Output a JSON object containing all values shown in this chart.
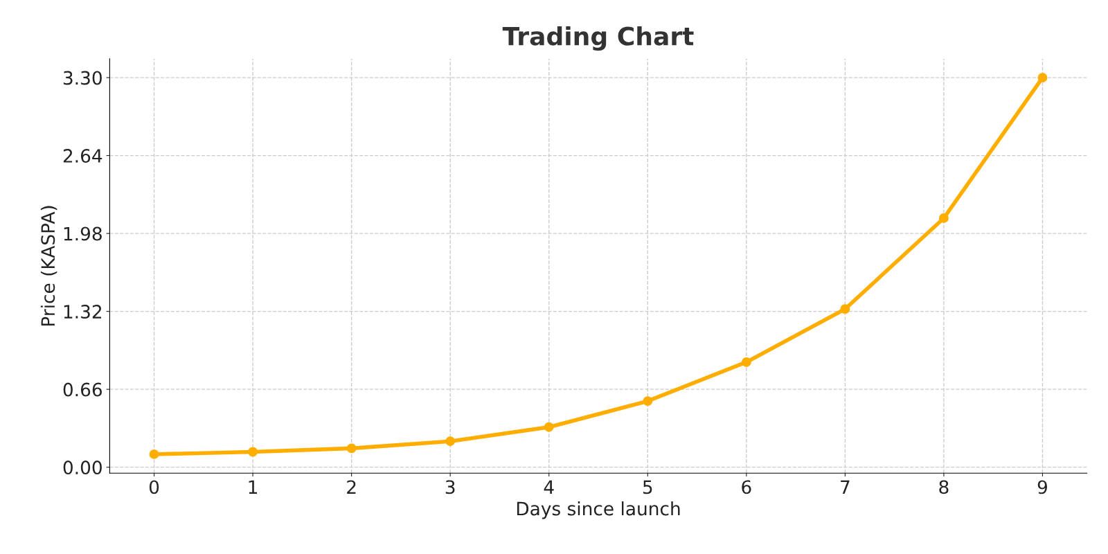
{
  "chart_data": {
    "type": "line",
    "title": "Trading Chart",
    "xlabel": "Days since launch",
    "ylabel": "Price (KASPA)",
    "x": [
      0,
      1,
      2,
      3,
      4,
      5,
      6,
      7,
      8,
      9
    ],
    "series": [
      {
        "color": "#ffae00",
        "values": [
          0.11,
          0.13,
          0.16,
          0.22,
          0.34,
          0.56,
          0.89,
          1.34,
          2.11,
          3.3
        ]
      }
    ],
    "xlim": [
      -0.45,
      9.45
    ],
    "xticks": [
      0,
      1,
      2,
      3,
      4,
      5,
      6,
      7,
      8,
      9
    ],
    "ylim": [
      -0.05,
      3.46
    ],
    "yticks": [
      {
        "value": 0,
        "label": "0.00"
      },
      {
        "value": 0.66,
        "label": "0.66"
      },
      {
        "value": 1.32,
        "label": "1.32"
      },
      {
        "value": 1.98,
        "label": "1.98"
      },
      {
        "value": 2.64,
        "label": "2.64"
      },
      {
        "value": 3.3,
        "label": "3.30"
      }
    ],
    "grid": true,
    "marker": "circle",
    "line_style": "solid"
  }
}
